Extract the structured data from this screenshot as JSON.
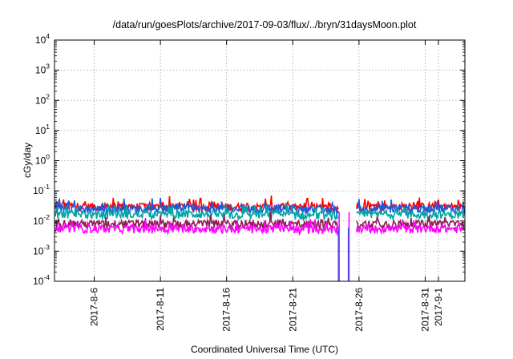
{
  "chart_data": {
    "type": "line",
    "title": "/data/run/goesPlots/archive/2017-09-03/flux/../bryn/31daysMoon.plot",
    "xlabel": "Coordinated Universal Time (UTC)",
    "ylabel": "cGy/day",
    "yscale": "log",
    "ylim": [
      0.0001,
      10000
    ],
    "xlim": [
      "2017-08-03 00:00",
      "2017-09-03 00:00"
    ],
    "grid": true,
    "legend": "none",
    "x_ticks": [
      "2017-8-6",
      "2017-8-11",
      "2017-8-16",
      "2017-8-21",
      "2017-8-26",
      "2017-8-31",
      "2017-9-1"
    ],
    "y_ticks": [
      {
        "base": "10",
        "exp": "-4",
        "value": 0.0001
      },
      {
        "base": "10",
        "exp": "-3",
        "value": 0.001
      },
      {
        "base": "10",
        "exp": "-2",
        "value": 0.01
      },
      {
        "base": "10",
        "exp": "-1",
        "value": 0.1
      },
      {
        "base": "10",
        "exp": "0",
        "value": 1
      },
      {
        "base": "10",
        "exp": "1",
        "value": 10
      },
      {
        "base": "10",
        "exp": "2",
        "value": 100
      },
      {
        "base": "10",
        "exp": "3",
        "value": 1000
      },
      {
        "base": "10",
        "exp": "4",
        "value": 10000
      }
    ],
    "data_gap": [
      "2017-08-24 12:00",
      "2017-08-25 18:00"
    ],
    "dropouts": [
      "2017-08-24 12:00",
      "2017-08-25 06:00"
    ],
    "series": [
      {
        "color": "#ff0000",
        "x": [
          "2017-08-04",
          "2017-08-06",
          "2017-08-08",
          "2017-08-10",
          "2017-08-12",
          "2017-08-14",
          "2017-08-16",
          "2017-08-18",
          "2017-08-20",
          "2017-08-22",
          "2017-08-24",
          "2017-08-26",
          "2017-08-28",
          "2017-08-30",
          "2017-09-01",
          "2017-09-02"
        ],
        "y": [
          0.032,
          0.03,
          0.031,
          0.029,
          0.03,
          0.031,
          0.03,
          0.029,
          0.03,
          0.028,
          0.027,
          0.03,
          0.031,
          0.03,
          0.032,
          0.03
        ]
      },
      {
        "color": "#1e5adc",
        "x": [
          "2017-08-04",
          "2017-08-06",
          "2017-08-08",
          "2017-08-10",
          "2017-08-12",
          "2017-08-14",
          "2017-08-16",
          "2017-08-18",
          "2017-08-20",
          "2017-08-22",
          "2017-08-24",
          "2017-08-26",
          "2017-08-28",
          "2017-08-30",
          "2017-09-01",
          "2017-09-02"
        ],
        "y": [
          0.027,
          0.025,
          0.026,
          0.025,
          0.026,
          0.026,
          0.025,
          0.025,
          0.026,
          0.024,
          0.023,
          0.025,
          0.026,
          0.025,
          0.027,
          0.025
        ]
      },
      {
        "color": "#00a5a5",
        "x": [
          "2017-08-04",
          "2017-08-06",
          "2017-08-08",
          "2017-08-10",
          "2017-08-12",
          "2017-08-14",
          "2017-08-16",
          "2017-08-18",
          "2017-08-20",
          "2017-08-22",
          "2017-08-24",
          "2017-08-26",
          "2017-08-28",
          "2017-08-30",
          "2017-09-01",
          "2017-09-02"
        ],
        "y": [
          0.017,
          0.016,
          0.017,
          0.016,
          0.017,
          0.017,
          0.016,
          0.016,
          0.017,
          0.015,
          0.015,
          0.016,
          0.017,
          0.016,
          0.017,
          0.016
        ]
      },
      {
        "color": "#8c1e50",
        "x": [
          "2017-08-04",
          "2017-08-06",
          "2017-08-08",
          "2017-08-10",
          "2017-08-12",
          "2017-08-14",
          "2017-08-16",
          "2017-08-18",
          "2017-08-20",
          "2017-08-22",
          "2017-08-24",
          "2017-08-26",
          "2017-08-28",
          "2017-08-30",
          "2017-09-01",
          "2017-09-02"
        ],
        "y": [
          0.0085,
          0.008,
          0.0082,
          0.008,
          0.0082,
          0.0083,
          0.008,
          0.008,
          0.0082,
          0.0078,
          0.0075,
          0.008,
          0.0082,
          0.008,
          0.0085,
          0.008
        ]
      },
      {
        "color": "#ff00ff",
        "x": [
          "2017-08-04",
          "2017-08-06",
          "2017-08-08",
          "2017-08-10",
          "2017-08-12",
          "2017-08-14",
          "2017-08-16",
          "2017-08-18",
          "2017-08-20",
          "2017-08-22",
          "2017-08-24",
          "2017-08-26",
          "2017-08-28",
          "2017-08-30",
          "2017-09-01",
          "2017-09-02"
        ],
        "y": [
          0.0058,
          0.0055,
          0.0056,
          0.0054,
          0.0056,
          0.0057,
          0.0055,
          0.0054,
          0.0056,
          0.0052,
          0.005,
          0.0055,
          0.0056,
          0.0055,
          0.0058,
          0.0055
        ]
      }
    ]
  }
}
